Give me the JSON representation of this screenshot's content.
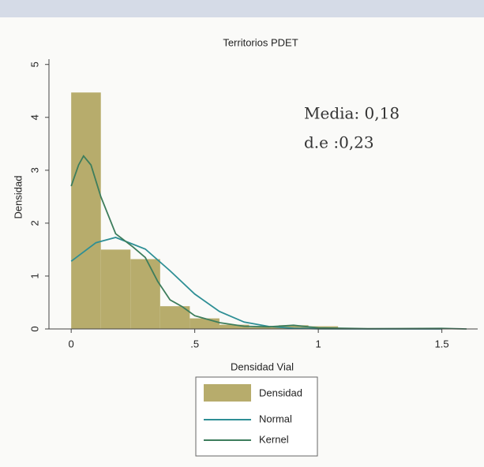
{
  "chart_data": {
    "type": "histogram",
    "title": "Territorios PDET",
    "xlabel": "Densidad Vial",
    "ylabel": "Densidad",
    "annotations": [
      "Media: 0,18",
      "d.e :0,23"
    ],
    "histogram": {
      "name": "Densidad",
      "color": "#b7ac6c",
      "bins": [
        0,
        0.12,
        0.24,
        0.36,
        0.48,
        0.6,
        0.72,
        0.84,
        0.96,
        1.08,
        1.2,
        1.32,
        1.44,
        1.56
      ],
      "values": [
        4.47,
        1.5,
        1.32,
        0.43,
        0.2,
        0.08,
        0.03,
        0.07,
        0.05,
        0.01,
        0,
        0,
        0.01
      ]
    },
    "series": [
      {
        "name": "Normal",
        "color": "#2e8f95",
        "x": [
          0,
          0.1,
          0.18,
          0.3,
          0.4,
          0.5,
          0.6,
          0.7,
          0.8,
          0.9,
          1.0,
          1.2,
          1.5
        ],
        "values": [
          1.28,
          1.63,
          1.73,
          1.51,
          1.1,
          0.66,
          0.33,
          0.13,
          0.046,
          0.013,
          0.003,
          0,
          0
        ]
      },
      {
        "name": "Kernel",
        "color": "#3d7d5c",
        "x": [
          0,
          0.03,
          0.05,
          0.08,
          0.12,
          0.18,
          0.25,
          0.3,
          0.35,
          0.4,
          0.45,
          0.5,
          0.6,
          0.7,
          0.8,
          0.9,
          1.0,
          1.2,
          1.5,
          1.6
        ],
        "values": [
          2.7,
          3.1,
          3.27,
          3.1,
          2.5,
          1.8,
          1.55,
          1.35,
          0.9,
          0.55,
          0.42,
          0.25,
          0.12,
          0.05,
          0.04,
          0.07,
          0.02,
          0.005,
          0.01,
          0
        ]
      }
    ],
    "xlim": [
      -0.09,
      1.645
    ],
    "ylim": [
      0,
      5.1
    ],
    "xticks": [
      0,
      {
        "value": 0.5,
        "label": ".5"
      },
      1,
      1.5
    ],
    "yticks": [
      0,
      1,
      2,
      3,
      4,
      5
    ]
  }
}
